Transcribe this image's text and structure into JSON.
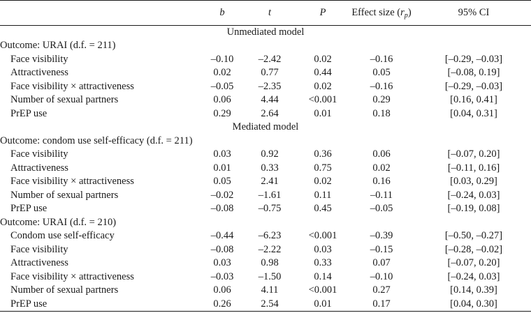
{
  "header": {
    "label": "",
    "b": "b",
    "t": "t",
    "p": "P",
    "effect_prefix": "Effect size (",
    "effect_var": "r",
    "effect_sub": "p",
    "effect_suffix": ")",
    "ci": "95% CI"
  },
  "rows": [
    {
      "label": "Unmediated model"
    },
    {
      "label": "Outcome: URAI (d.f. = 211)"
    },
    {
      "label": "Face visibility",
      "b": "–0.10",
      "t": "–2.42",
      "p": "0.02",
      "es": "–0.16",
      "ci": "[–0.29, –0.03]"
    },
    {
      "label": "Attractiveness",
      "b": "0.02",
      "t": "0.77",
      "p": "0.44",
      "es": "0.05",
      "ci": "[–0.08, 0.19]"
    },
    {
      "label": "Face visibility × attractiveness",
      "b": "–0.05",
      "t": "–2.35",
      "p": "0.02",
      "es": "–0.16",
      "ci": "[–0.29, –0.03]"
    },
    {
      "label": "Number of sexual partners",
      "b": "0.06",
      "t": "4.44",
      "p": "<0.001",
      "es": "0.29",
      "ci": "[0.16, 0.41]"
    },
    {
      "label": "PrEP use",
      "b": "0.29",
      "t": "2.64",
      "p": "0.01",
      "es": "0.18",
      "ci": "[0.04, 0.31]"
    },
    {
      "label": "Mediated model"
    },
    {
      "label": "Outcome: condom use self-efficacy (d.f. = 211)"
    },
    {
      "label": "Face visibility",
      "b": "0.03",
      "t": "0.92",
      "p": "0.36",
      "es": "0.06",
      "ci": "[–0.07, 0.20]"
    },
    {
      "label": "Attractiveness",
      "b": "0.01",
      "t": "0.33",
      "p": "0.75",
      "es": "0.02",
      "ci": "[–0.11, 0.16]"
    },
    {
      "label": "Face visibility × attractiveness",
      "b": "0.05",
      "t": "2.41",
      "p": "0.02",
      "es": "0.16",
      "ci": "[0.03, 0.29]"
    },
    {
      "label": "Number of sexual partners",
      "b": "–0.02",
      "t": "–1.61",
      "p": "0.11",
      "es": "–0.11",
      "ci": "[–0.24, 0.03]"
    },
    {
      "label": "PrEP use",
      "b": "–0.08",
      "t": "–0.75",
      "p": "0.45",
      "es": "–0.05",
      "ci": "[–0.19, 0.08]"
    },
    {
      "label": "Outcome: URAI (d.f. = 210)"
    },
    {
      "label": "Condom use self-efficacy",
      "b": "–0.44",
      "t": "–6.23",
      "p": "<0.001",
      "es": "–0.39",
      "ci": "[–0.50, –0.27]"
    },
    {
      "label": "Face visibility",
      "b": "–0.08",
      "t": "–2.22",
      "p": "0.03",
      "es": "–0.15",
      "ci": "[–0.28, –0.02]"
    },
    {
      "label": "Attractiveness",
      "b": "0.03",
      "t": "0.98",
      "p": "0.33",
      "es": "0.07",
      "ci": "[–0.07, 0.20]"
    },
    {
      "label": "Face visibility × attractiveness",
      "b": "–0.03",
      "t": "–1.50",
      "p": "0.14",
      "es": "–0.10",
      "ci": "[–0.24, 0.03]"
    },
    {
      "label": "Number of sexual partners",
      "b": "0.06",
      "t": "4.11",
      "p": "<0.001",
      "es": "0.27",
      "ci": "[0.14, 0.39]"
    },
    {
      "label": "PrEP use",
      "b": "0.26",
      "t": "2.54",
      "p": "0.01",
      "es": "0.17",
      "ci": "[0.04, 0.30]"
    }
  ]
}
